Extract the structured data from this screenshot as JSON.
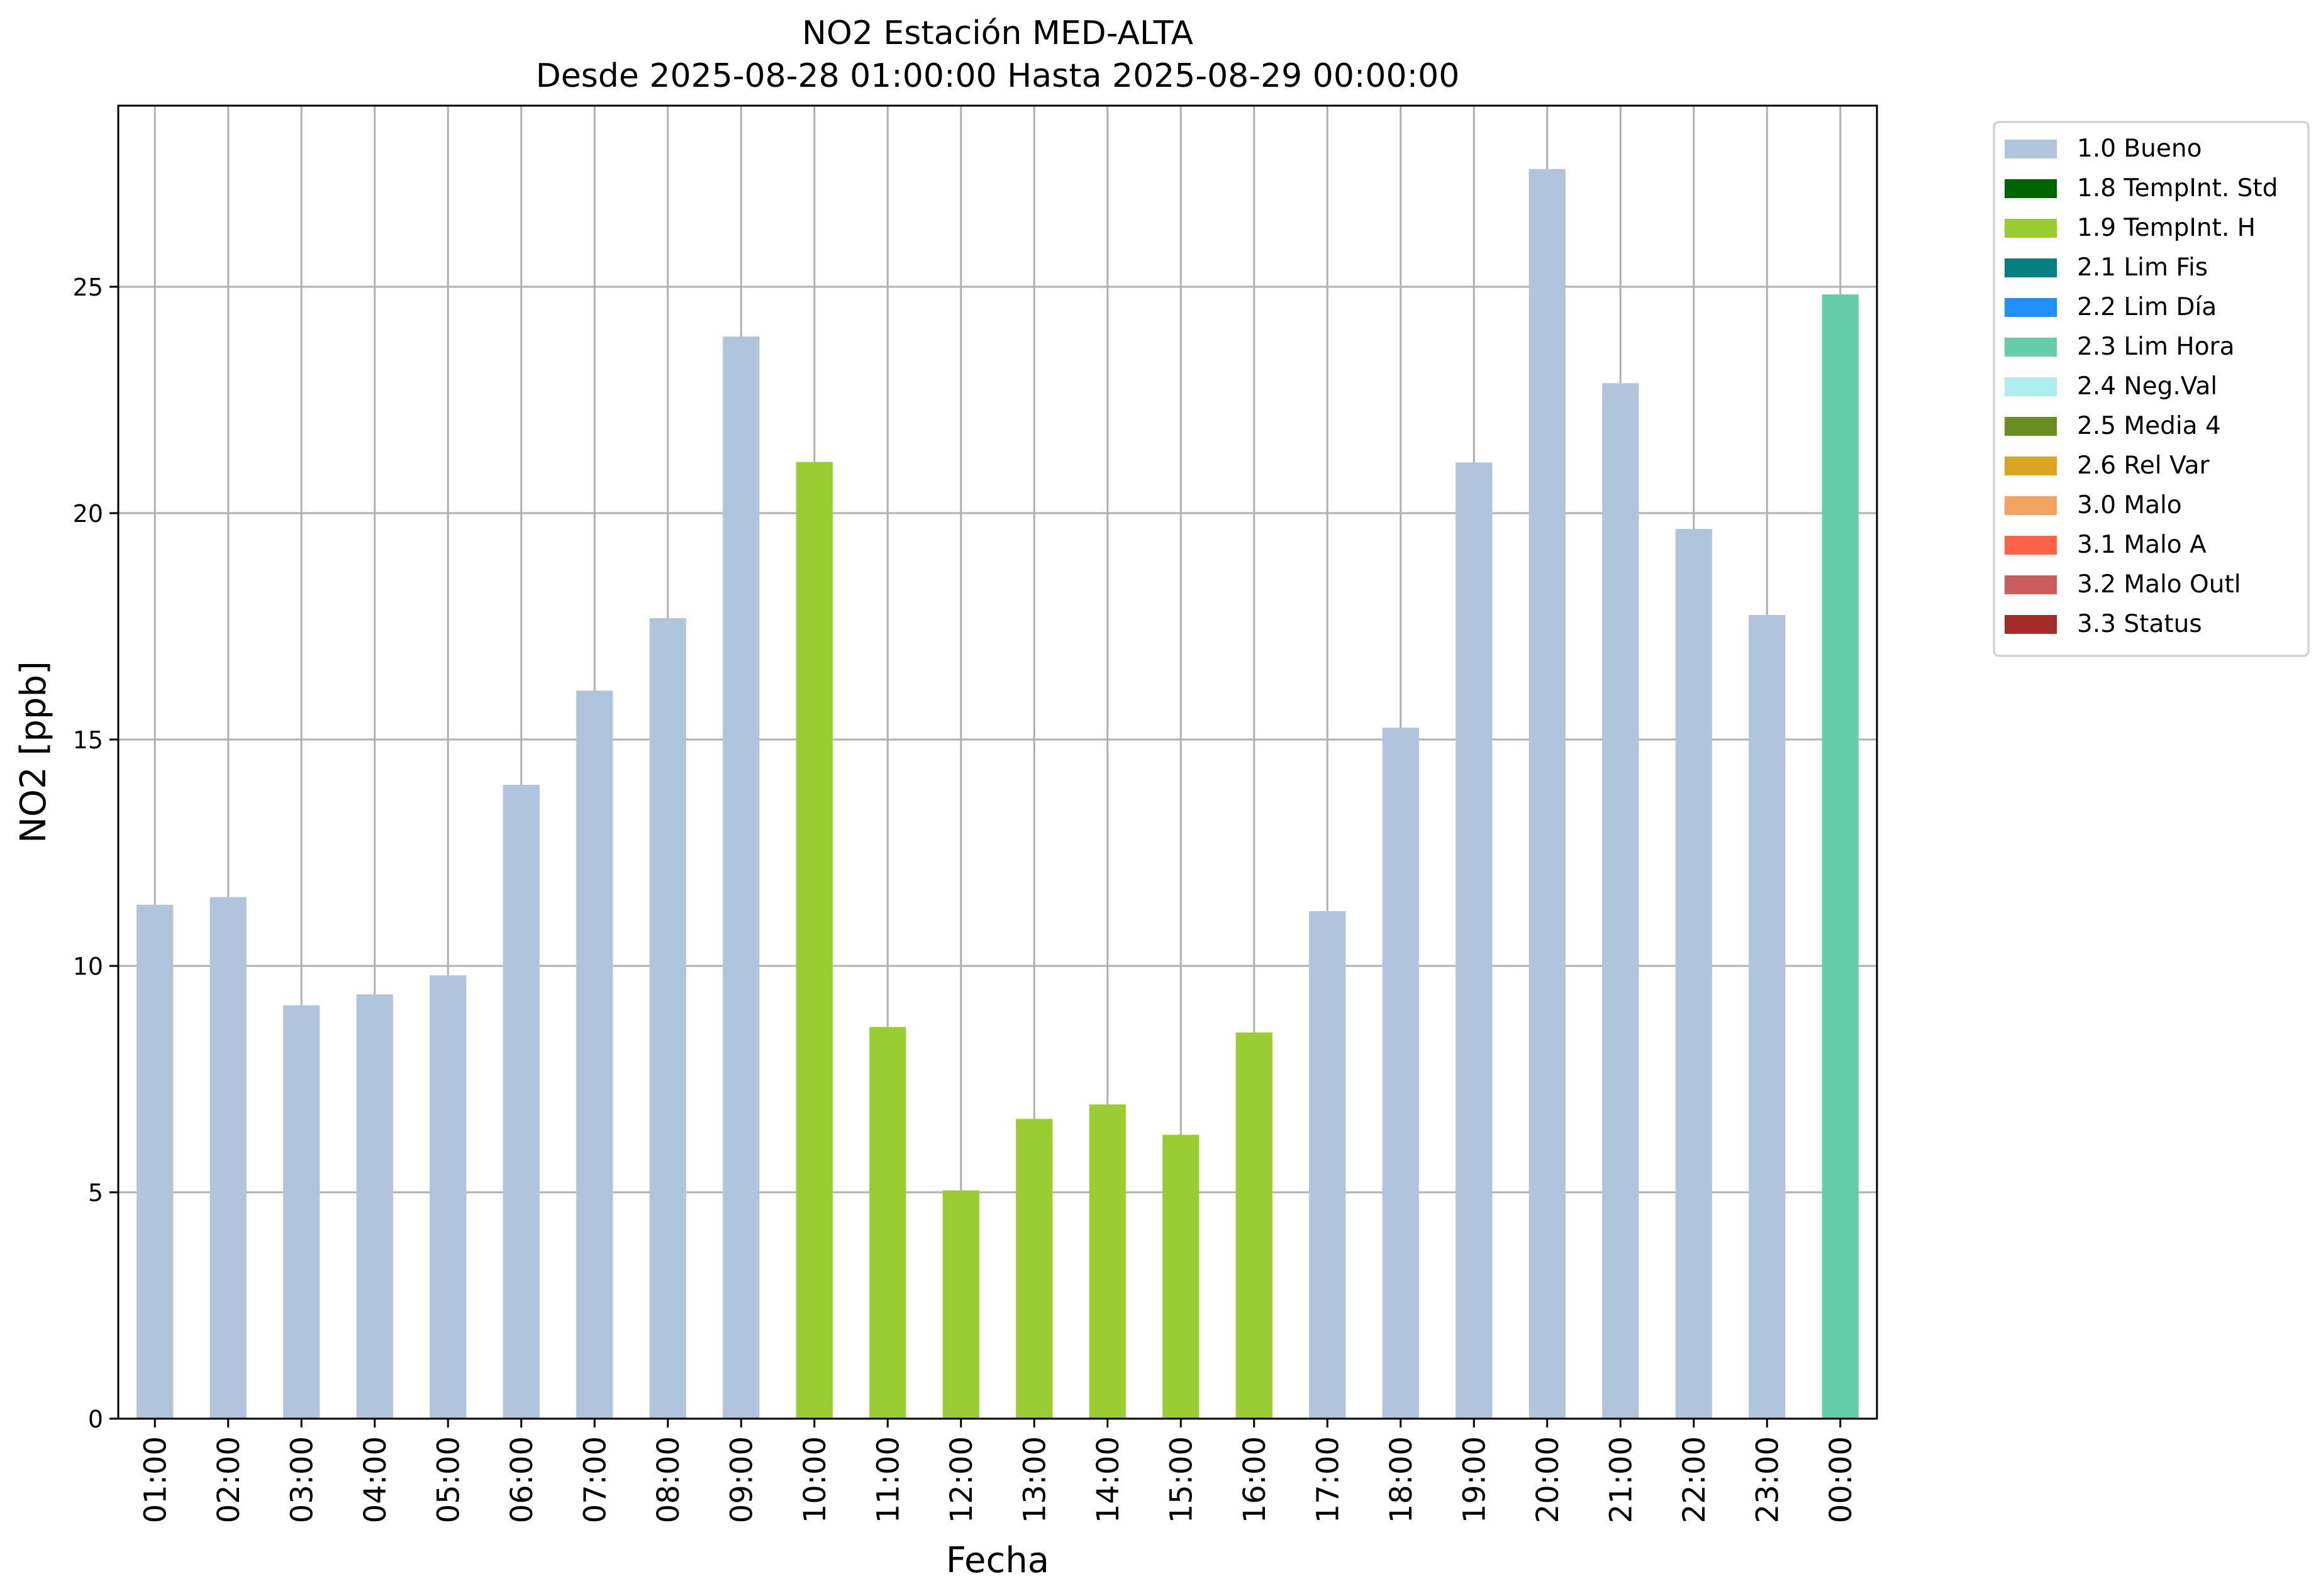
{
  "chart_data": {
    "type": "bar",
    "title": "NO2 Estación MED-ALTA",
    "subtitle": "Desde 2025-08-28 01:00:00 Hasta 2025-08-29 00:00:00",
    "xlabel": "Fecha",
    "ylabel": "NO2 [ppb]",
    "ylim": [
      0,
      29
    ],
    "yticks": [
      0,
      5,
      10,
      15,
      20,
      25
    ],
    "grid": true,
    "legend_position": "outside-top-right",
    "categories": [
      "01:00",
      "02:00",
      "03:00",
      "04:00",
      "05:00",
      "06:00",
      "07:00",
      "08:00",
      "09:00",
      "10:00",
      "11:00",
      "12:00",
      "13:00",
      "14:00",
      "15:00",
      "16:00",
      "17:00",
      "18:00",
      "19:00",
      "20:00",
      "21:00",
      "22:00",
      "23:00",
      "00:00"
    ],
    "values": [
      11.35,
      11.52,
      9.13,
      9.37,
      9.79,
      14.0,
      16.08,
      17.68,
      23.9,
      21.13,
      8.65,
      5.04,
      6.62,
      6.94,
      6.27,
      8.53,
      11.21,
      15.26,
      21.12,
      27.6,
      22.87,
      19.65,
      17.75,
      24.83
    ],
    "flags": [
      "1.0 Bueno",
      "1.0 Bueno",
      "1.0 Bueno",
      "1.0 Bueno",
      "1.0 Bueno",
      "1.0 Bueno",
      "1.0 Bueno",
      "1.0 Bueno",
      "1.0 Bueno",
      "1.9 TempInt. H",
      "1.9 TempInt. H",
      "1.9 TempInt. H",
      "1.9 TempInt. H",
      "1.9 TempInt. H",
      "1.9 TempInt. H",
      "1.9 TempInt. H",
      "1.0 Bueno",
      "1.0 Bueno",
      "1.0 Bueno",
      "1.0 Bueno",
      "1.0 Bueno",
      "1.0 Bueno",
      "1.0 Bueno",
      "2.3 Lim Hora"
    ],
    "legend": [
      {
        "label": "1.0 Bueno",
        "color": "#b0c4de"
      },
      {
        "label": "1.8 TempInt. Std",
        "color": "#006400"
      },
      {
        "label": "1.9 TempInt. H",
        "color": "#9acd32"
      },
      {
        "label": "2.1 Lim Fis",
        "color": "#008080"
      },
      {
        "label": "2.2 Lim Día",
        "color": "#1e90ff"
      },
      {
        "label": "2.3 Lim Hora",
        "color": "#66cdaa"
      },
      {
        "label": "2.4 Neg.Val",
        "color": "#afeeee"
      },
      {
        "label": "2.5 Media 4",
        "color": "#6b8e23"
      },
      {
        "label": "2.6 Rel Var",
        "color": "#daa520"
      },
      {
        "label": "3.0 Malo",
        "color": "#f4a460"
      },
      {
        "label": "3.1 Malo A",
        "color": "#ff6347"
      },
      {
        "label": "3.2 Malo Outl",
        "color": "#cd5c5c"
      },
      {
        "label": "3.3 Status",
        "color": "#a52a2a"
      }
    ]
  }
}
